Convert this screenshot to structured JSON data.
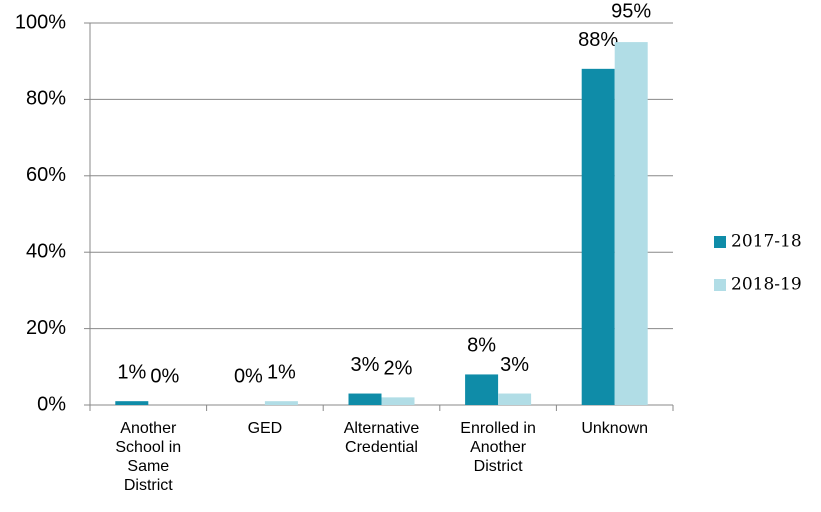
{
  "chart_data": {
    "type": "bar",
    "categories": [
      "Another\nSchool in\nSame\nDistrict",
      "GED",
      "Alternative\nCredential",
      "Enrolled in\nAnother\nDistrict",
      "Unknown"
    ],
    "series": [
      {
        "name": "2017-18",
        "color": "#0f8ca8",
        "values": [
          1,
          0,
          3,
          8,
          88
        ],
        "value_labels": [
          "1%",
          "0%",
          "3%",
          "8%",
          "88%"
        ]
      },
      {
        "name": "2018-19",
        "color": "#b1dde6",
        "values": [
          0,
          1,
          2,
          3,
          95
        ],
        "value_labels": [
          "0%",
          "1%",
          "2%",
          "3%",
          "95%"
        ]
      }
    ],
    "ylim": [
      0,
      100
    ],
    "yticks": [
      {
        "value": 0,
        "label": "0%"
      },
      {
        "value": 20,
        "label": "20%"
      },
      {
        "value": 40,
        "label": "40%"
      },
      {
        "value": 60,
        "label": "60%"
      },
      {
        "value": 80,
        "label": "80%"
      },
      {
        "value": 100,
        "label": "100%"
      }
    ],
    "grid": true,
    "legend": "right"
  }
}
